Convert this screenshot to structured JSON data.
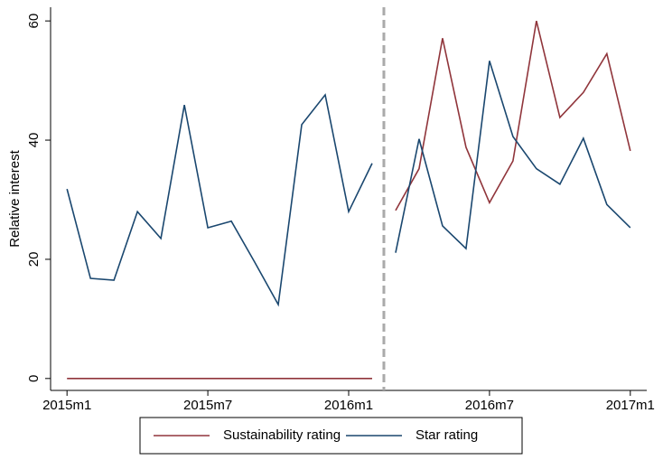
{
  "chart_data": {
    "type": "line",
    "y_label": "Relative interest",
    "x": [
      660,
      661,
      662,
      663,
      664,
      665,
      666,
      667,
      668,
      669,
      670,
      671,
      672,
      673,
      674,
      675,
      676,
      677,
      678,
      679,
      680,
      681,
      682,
      683,
      684
    ],
    "series": [
      {
        "name": "Sustainability rating",
        "color": "#90353b",
        "values": [
          0,
          0,
          0,
          0,
          0,
          0,
          0,
          0,
          0,
          0,
          0,
          0,
          0,
          0,
          28.2,
          35.2,
          57.1,
          38.8,
          29.5,
          36.5,
          60.0,
          43.8,
          48.0,
          54.5,
          38.2
        ]
      },
      {
        "name": "Star rating",
        "color": "#1a476f",
        "values": [
          31.8,
          16.8,
          16.5,
          28.0,
          23.5,
          45.9,
          25.3,
          26.4,
          19.5,
          12.4,
          42.6,
          47.6,
          28.0,
          36.1,
          21.1,
          40.2,
          25.6,
          21.8,
          53.3,
          40.6,
          35.2,
          32.6,
          40.3,
          29.2,
          25.3
        ]
      }
    ],
    "vline": 673.5,
    "xlim": [
      659.3,
      684.7
    ],
    "xticks": [
      {
        "value": 660,
        "label": "2015m1"
      },
      {
        "value": 666,
        "label": "2015m7"
      },
      {
        "value": 672,
        "label": "2016m1"
      },
      {
        "value": 678,
        "label": "2016m7"
      },
      {
        "value": 684,
        "label": "2017m1"
      }
    ],
    "ylim": [
      -2,
      62.3
    ],
    "yticks": [
      0,
      20,
      40,
      60
    ],
    "grid": false,
    "legend": "bottom"
  }
}
